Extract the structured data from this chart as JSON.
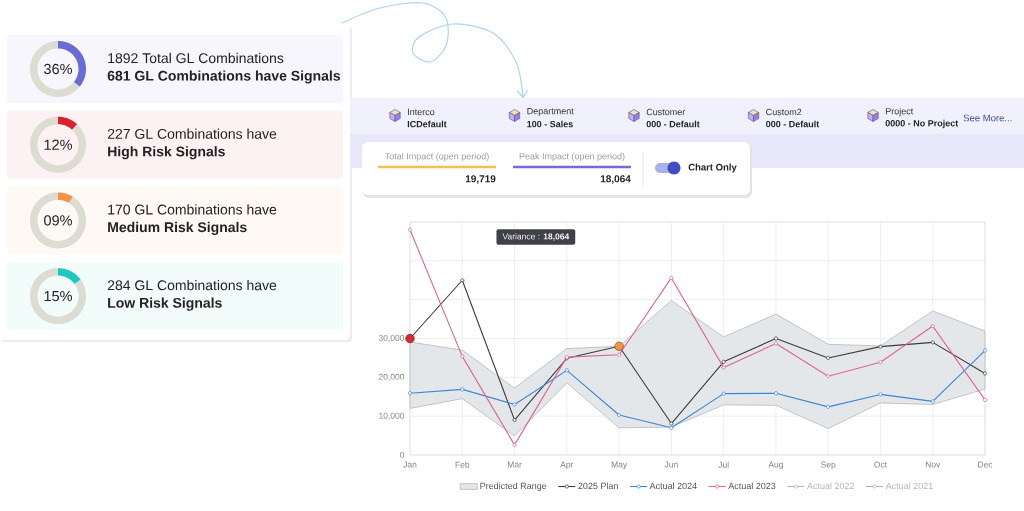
{
  "chart_data": [
    {
      "type": "donut",
      "title": "36%",
      "categories": [
        null,
        null
      ],
      "values": [
        36,
        64
      ],
      "colors": [
        "#6b6bd6",
        "#dcdcd2"
      ],
      "annotations": [
        "1892 Total GL Combinations",
        "681 GL Combinations have Signals"
      ]
    },
    {
      "type": "donut",
      "title": "12%",
      "categories": [
        null,
        null
      ],
      "values": [
        12,
        88
      ],
      "colors": [
        "#d8232e",
        "#dcdcd2"
      ],
      "annotations": [
        "227 GL Combinations have",
        "High Risk Signals"
      ]
    },
    {
      "type": "donut",
      "title": "09%",
      "categories": [
        null,
        null
      ],
      "values": [
        9,
        91
      ],
      "colors": [
        "#f29447",
        "#dcdcd2"
      ],
      "annotations": [
        "170 GL Combinations have",
        "Medium Risk Signals"
      ]
    },
    {
      "type": "donut",
      "title": "15%",
      "categories": [
        null,
        null
      ],
      "values": [
        15,
        85
      ],
      "colors": [
        "#1ec8c0",
        "#dcdcd2"
      ],
      "annotations": [
        "284 GL Combinations have",
        "Low Risk Signals"
      ]
    },
    {
      "type": "other",
      "annotations": [
        "Interco",
        "ICDefault",
        "Department",
        "100 - Sales",
        "Customer",
        "000 - Default",
        "Custom2",
        "000 - Default",
        "Project",
        "0000 - No Project",
        "See More..."
      ]
    },
    {
      "type": "other",
      "annotations": [
        "Total Impact (open period)",
        "19,719",
        "Peak Impact (open period)",
        "18,064",
        "Chart Only"
      ]
    },
    {
      "type": "line",
      "categories": [
        "Jan",
        "Feb",
        "Mar",
        "Apr",
        "May",
        "Jun",
        "Jul",
        "Aug",
        "Sep",
        "Oct",
        "Nov",
        "Dec"
      ],
      "ylim": [
        0,
        60000
      ],
      "yticks": [
        0,
        {
          "value": 10000,
          "label": "10,000"
        },
        {
          "value": 20000,
          "label": "20,000"
        },
        {
          "value": 30000,
          "label": "30,000"
        },
        {
          "value": 40000,
          "label": null
        },
        {
          "value": 50000,
          "label": null
        },
        {
          "value": 60000,
          "label": null
        }
      ],
      "grid": true,
      "legend": "bottom",
      "marker": "circle",
      "annotations": [
        "Variance : **18,064**"
      ],
      "series": [
        {
          "name": "Predicted Range",
          "type": "area",
          "color": "#e4e7e9",
          "values": [
            null,
            null,
            null,
            null,
            null,
            null,
            null,
            null,
            null,
            null,
            null,
            null
          ],
          "lower": [
            12000,
            14500,
            4900,
            18600,
            7000,
            7200,
            12900,
            12800,
            6800,
            13400,
            13000,
            17000
          ],
          "upper": [
            29100,
            27000,
            17200,
            27400,
            28000,
            39800,
            30400,
            36300,
            28500,
            28100,
            37100,
            31900
          ]
        },
        {
          "name": "2025 Plan",
          "color": "#3c3c3c",
          "values": [
            30000,
            45000,
            9000,
            24900,
            28000,
            8100,
            24000,
            30000,
            25000,
            27900,
            29000,
            21000
          ],
          "colors": [
            "#d42b2b",
            null,
            null,
            null,
            "#f0943e",
            null,
            null,
            null,
            null,
            null,
            null,
            null
          ]
        },
        {
          "name": "Actual 2024",
          "color": "#3d85d8",
          "values": [
            15900,
            16900,
            13000,
            21800,
            10300,
            7000,
            15800,
            15900,
            12400,
            15600,
            13800,
            26900
          ]
        },
        {
          "name": "Actual 2023",
          "color": "#e0658f",
          "values": [
            58000,
            25400,
            2600,
            25200,
            25800,
            45600,
            22500,
            28700,
            20300,
            23900,
            33200,
            14200
          ]
        },
        {
          "name": "Actual 2022",
          "color": "#b4b4b4",
          "values": [
            null,
            null,
            null,
            null,
            null,
            null,
            null,
            null,
            null,
            null,
            null,
            null
          ]
        },
        {
          "name": "Actual 2021",
          "color": "#b4b4b4",
          "values": [
            null,
            null,
            null,
            null,
            null,
            null,
            null,
            null,
            null,
            null,
            null,
            null
          ]
        }
      ]
    }
  ]
}
